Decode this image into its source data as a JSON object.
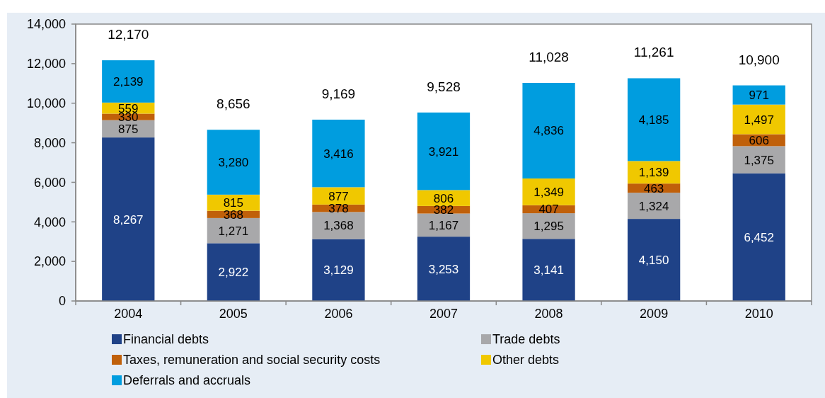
{
  "chart_data": {
    "type": "bar",
    "stacked": true,
    "categories": [
      "2004",
      "2005",
      "2006",
      "2007",
      "2008",
      "2009",
      "2010"
    ],
    "series": [
      {
        "name": "Financial debts",
        "color": "#1f4287",
        "values": [
          8267,
          2922,
          3129,
          3253,
          3141,
          4150,
          6452
        ],
        "value_labels": [
          "8,267",
          "2,922",
          "3,129",
          "3,253",
          "3,141",
          "4,150",
          "6,452"
        ]
      },
      {
        "name": "Trade debts",
        "color": "#a8a8aa",
        "values": [
          875,
          1271,
          1368,
          1167,
          1295,
          1324,
          1375
        ],
        "value_labels": [
          "875",
          "1,271",
          "1,368",
          "1,167",
          "1,295",
          "1,324",
          "1,375"
        ]
      },
      {
        "name": "Taxes, remuneration and social security costs",
        "color": "#c0600a",
        "values": [
          330,
          368,
          378,
          382,
          407,
          463,
          606
        ],
        "value_labels": [
          "330",
          "368",
          "378",
          "382",
          "407",
          "463",
          "606"
        ]
      },
      {
        "name": "Other debts",
        "color": "#f0c800",
        "values": [
          559,
          815,
          877,
          806,
          1349,
          1139,
          1497
        ],
        "value_labels": [
          "559",
          "815",
          "877",
          "806",
          "1,349",
          "1,139",
          "1,497"
        ]
      },
      {
        "name": "Deferrals and accruals",
        "color": "#009ddf",
        "values": [
          2139,
          3280,
          3416,
          3921,
          4836,
          4185,
          971
        ],
        "value_labels": [
          "2,139",
          "3,280",
          "3,416",
          "3,921",
          "4,836",
          "4,185",
          "971"
        ]
      }
    ],
    "totals": [
      "12,170",
      "8,656",
      "9,169",
      "9,528",
      "11,028",
      "11,261",
      "10,900"
    ],
    "ylim": [
      0,
      14000
    ],
    "yticks": [
      0,
      {
        "value": 2000,
        "label": "2,000"
      },
      {
        "value": 4000,
        "label": "4,000"
      },
      {
        "value": 6000,
        "label": "6,000"
      },
      {
        "value": 8000,
        "label": "8,000"
      },
      {
        "value": 10000,
        "label": "10,000"
      },
      {
        "value": 12000,
        "label": "12,000"
      },
      {
        "value": 14000,
        "label": "14,000"
      }
    ],
    "legend": "bottom"
  }
}
